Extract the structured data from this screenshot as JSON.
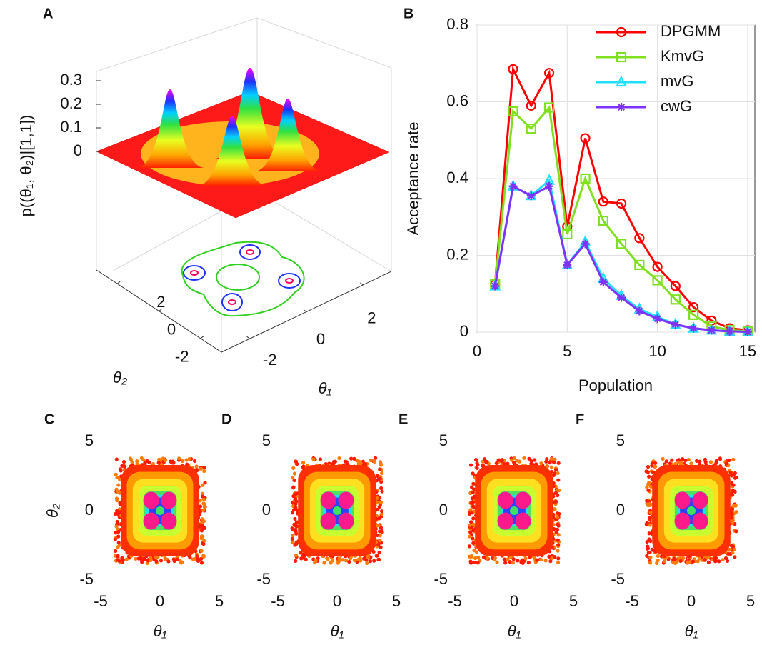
{
  "chart_data": [
    {
      "type": "surface3d",
      "panel": "A",
      "zlabel": "p((θ₁, θ₂)|[1,1])",
      "xlabel": "θ₁",
      "ylabel": "θ₂",
      "zlim": [
        0,
        0.3
      ],
      "zticks": [
        0,
        0.1,
        0.2,
        0.3
      ],
      "xlim": [
        -3,
        3
      ],
      "xticks": [
        -2,
        0,
        2
      ],
      "ylim": [
        -3,
        3
      ],
      "yticks": [
        -2,
        0,
        2
      ]
    },
    {
      "type": "line",
      "panel": "B",
      "xlabel": "Population",
      "ylabel": "Acceptance rate",
      "x": [
        1,
        2,
        3,
        4,
        5,
        6,
        7,
        8,
        9,
        10,
        11,
        12,
        13,
        14,
        15
      ],
      "series": [
        {
          "name": "DPGMM",
          "color": "#ff0000",
          "marker": "o",
          "values": [
            0.125,
            0.685,
            0.59,
            0.675,
            0.275,
            0.505,
            0.34,
            0.335,
            0.245,
            0.17,
            0.12,
            0.065,
            0.03,
            0.01,
            0.005
          ]
        },
        {
          "name": "KmvG",
          "color": "#80e020",
          "marker": "s",
          "values": [
            0.125,
            0.575,
            0.53,
            0.585,
            0.255,
            0.4,
            0.29,
            0.23,
            0.175,
            0.135,
            0.085,
            0.045,
            0.015,
            0.005,
            0.002
          ]
        },
        {
          "name": "mvG",
          "color": "#20e0ff",
          "marker": "^",
          "values": [
            0.12,
            0.38,
            0.355,
            0.395,
            0.175,
            0.235,
            0.14,
            0.095,
            0.06,
            0.04,
            0.02,
            0.01,
            0.005,
            0.002,
            0.001
          ]
        },
        {
          "name": "cwG",
          "color": "#8030ff",
          "marker": "*",
          "values": [
            0.12,
            0.38,
            0.355,
            0.38,
            0.175,
            0.23,
            0.13,
            0.09,
            0.055,
            0.035,
            0.02,
            0.01,
            0.005,
            0.002,
            0.001
          ]
        }
      ],
      "xlim": [
        0,
        15.4
      ],
      "xticks": [
        0,
        5,
        10,
        15
      ],
      "ylim": [
        0,
        0.8
      ],
      "yticks": [
        0,
        0.2,
        0.4,
        0.6,
        0.8
      ],
      "grid": true,
      "legend": "top-right"
    },
    {
      "type": "scatter-density",
      "panel": "C",
      "xlabel": "θ₁",
      "ylabel": "θ₂",
      "xlim": [
        -5,
        5
      ],
      "xticks": [
        -5,
        0,
        5
      ],
      "ylim": [
        -5,
        5
      ],
      "yticks": [
        -5,
        0,
        5
      ]
    },
    {
      "type": "scatter-density",
      "panel": "D",
      "xlabel": "θ₁",
      "xlim": [
        -5,
        5
      ],
      "xticks": [
        -5,
        0,
        5
      ],
      "ylim": [
        -5,
        5
      ],
      "yticks": [
        -5,
        0,
        5
      ]
    },
    {
      "type": "scatter-density",
      "panel": "E",
      "xlabel": "θ₁",
      "xlim": [
        -5,
        5
      ],
      "xticks": [
        -5,
        0,
        5
      ],
      "ylim": [
        -5,
        5
      ],
      "yticks": [
        -5,
        0,
        5
      ]
    },
    {
      "type": "scatter-density",
      "panel": "F",
      "xlabel": "θ₁",
      "xlim": [
        -5,
        5
      ],
      "xticks": [
        -5,
        0,
        5
      ],
      "ylim": [
        -5,
        5
      ],
      "yticks": [
        -5,
        0,
        5
      ]
    }
  ]
}
